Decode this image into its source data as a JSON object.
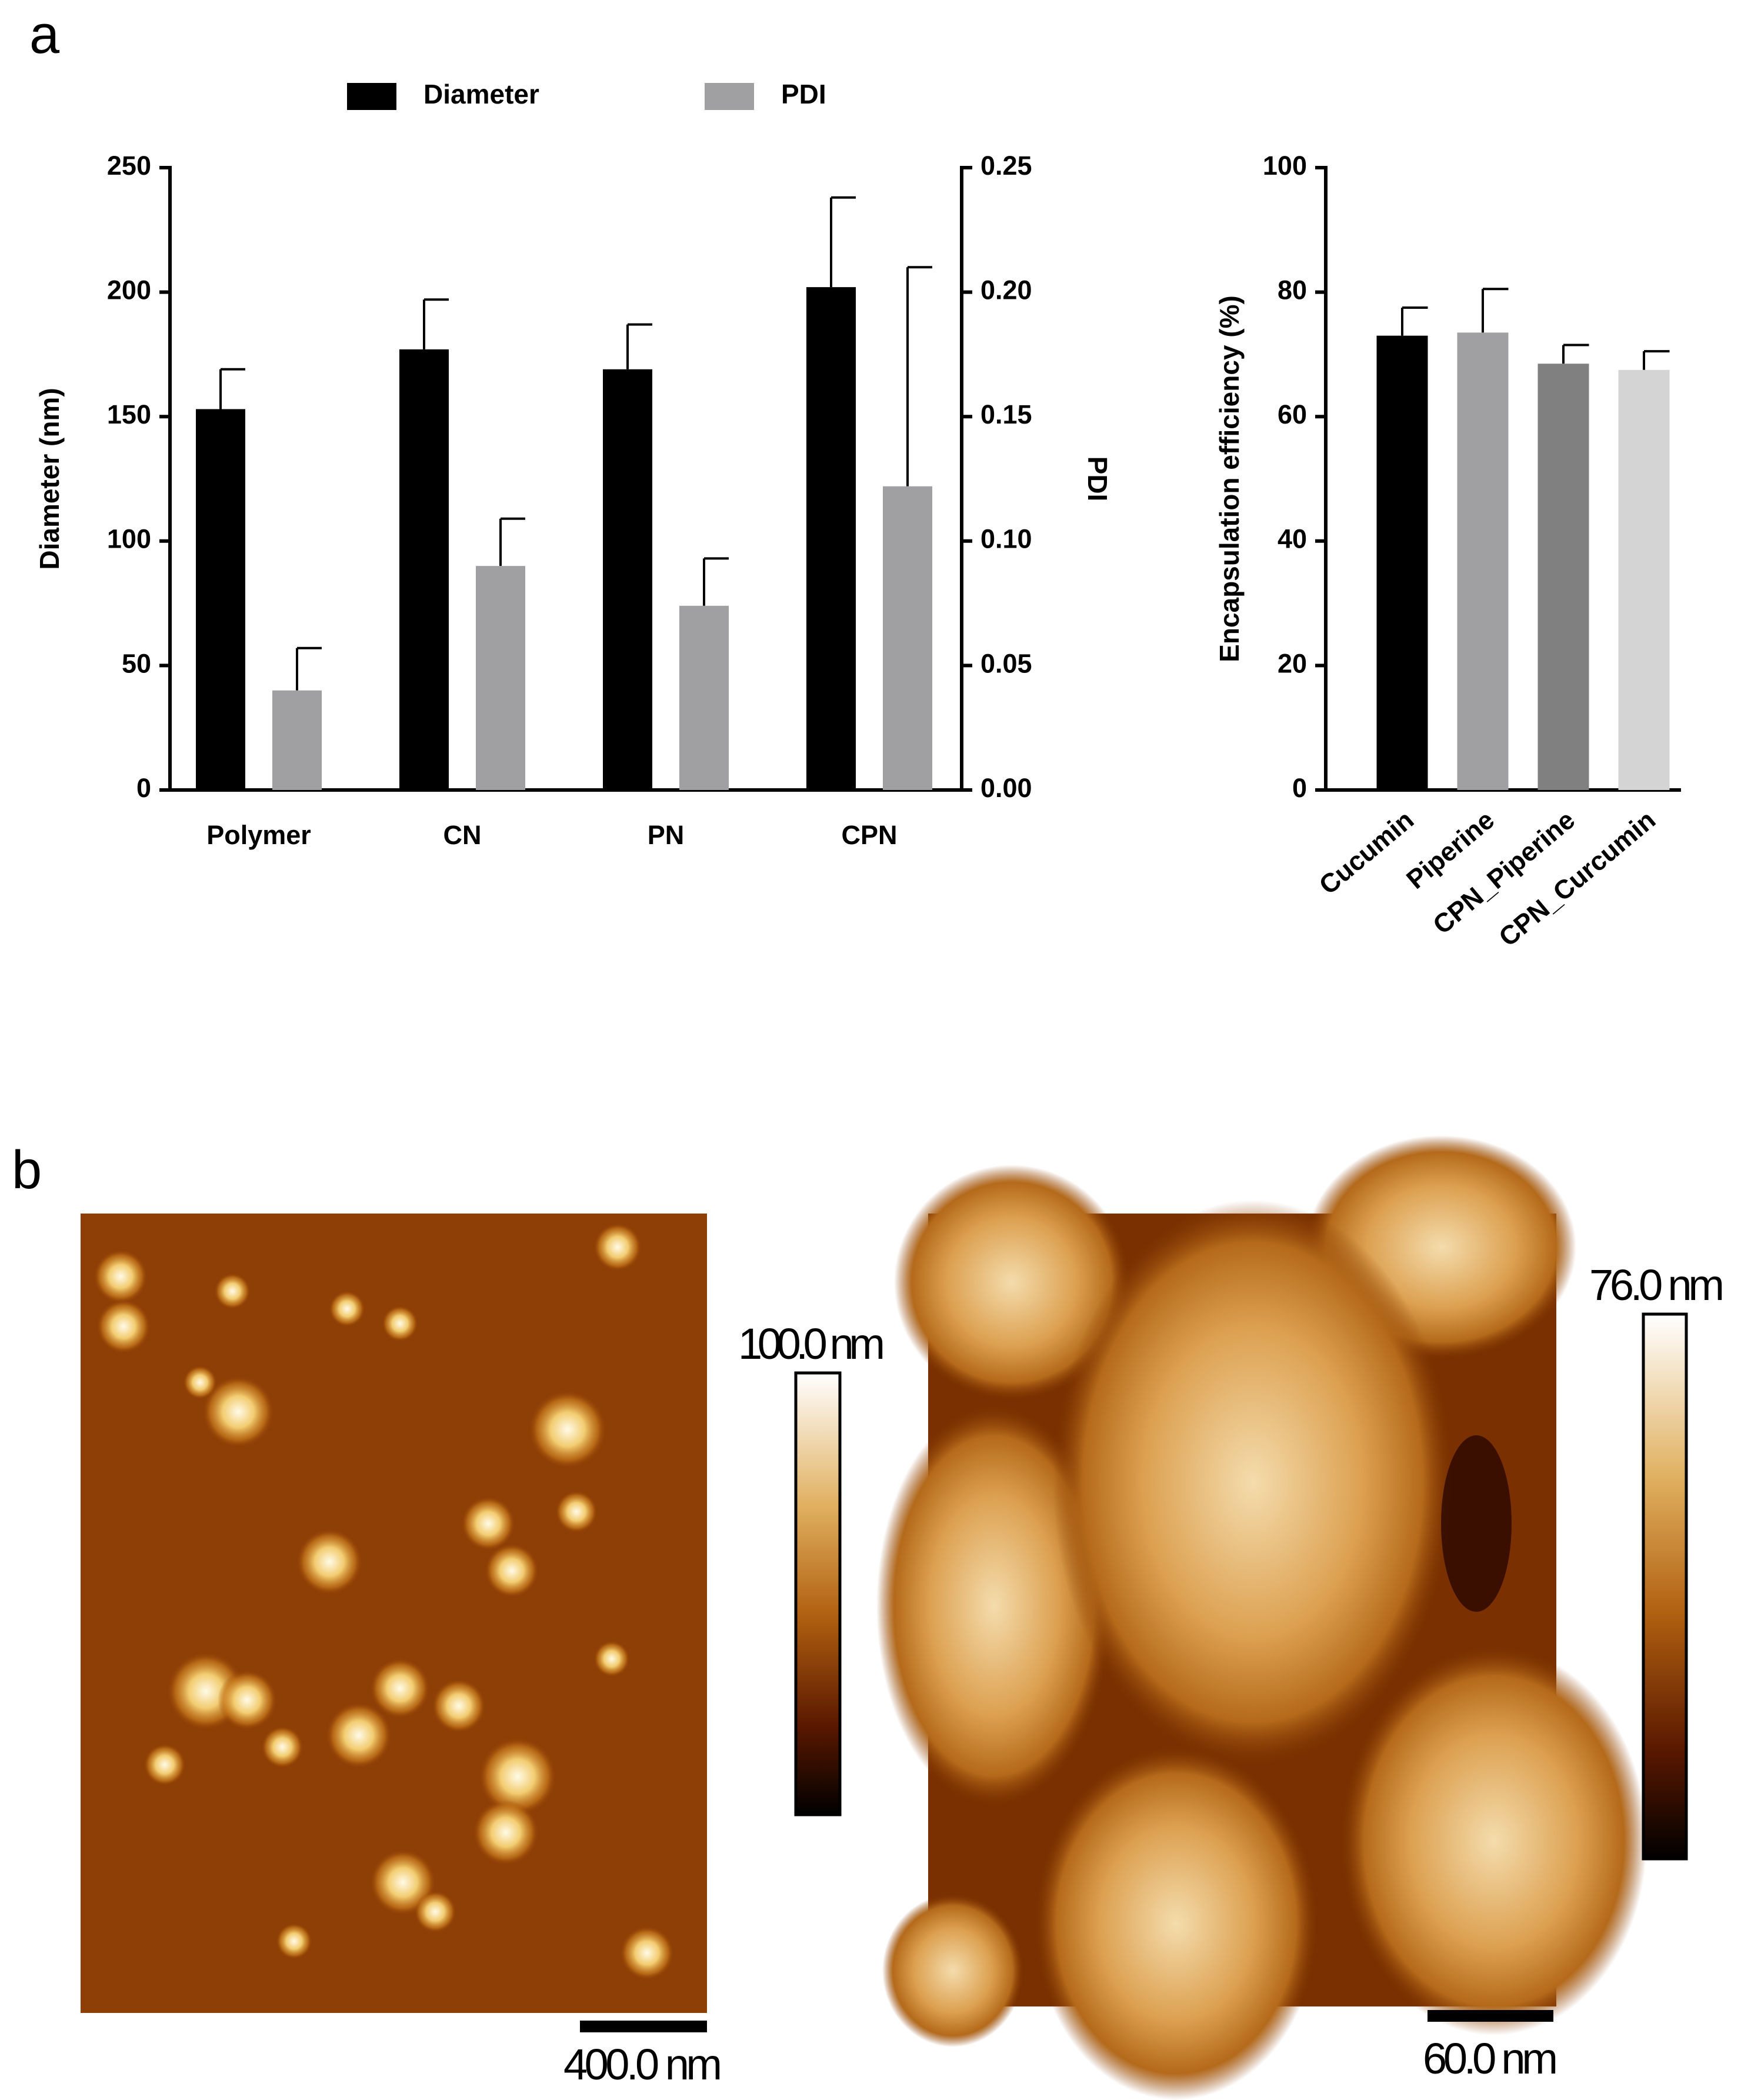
{
  "panel_labels": [
    "a",
    "b"
  ],
  "chart_data": [
    {
      "type": "bar",
      "categories": [
        "Polymer",
        "CN",
        "PN",
        "CPN"
      ],
      "series": [
        {
          "name": "Diameter",
          "color": "#000000",
          "values": [
            153,
            177,
            169,
            202
          ],
          "errors": [
            16,
            20,
            18,
            36
          ]
        },
        {
          "name": "PDI",
          "color": "#a0a0a2",
          "axis": "y2",
          "values": [
            0.04,
            0.09,
            0.074,
            0.122
          ],
          "errors": [
            0.017,
            0.019,
            0.019,
            0.088
          ]
        }
      ],
      "y_label": "Diameter (nm)",
      "y2_label": "PDI",
      "ylim": [
        0,
        250
      ],
      "yticks": [
        0,
        50,
        100,
        150,
        200,
        250
      ],
      "y2lim": [
        0,
        0.25
      ],
      "y2ticks": [
        {
          "value": 0,
          "label": "0.00"
        },
        0.05,
        {
          "value": 0.1,
          "label": "0.10"
        },
        0.15,
        {
          "value": 0.2,
          "label": "0.20"
        },
        0.25
      ],
      "legend": "top",
      "grid": false
    },
    {
      "type": "bar",
      "categories": [
        "Cucumin",
        "Piperine",
        "CPN_Piperine",
        "CPN_Curcumin"
      ],
      "values": [
        73,
        73.5,
        68.5,
        67.5
      ],
      "errors": [
        4.5,
        7,
        3,
        3
      ],
      "colors": [
        "#000000",
        "#a0a0a2",
        "#808080",
        "#d4d4d4"
      ],
      "y_label": "Encapsulation efficiency (%)",
      "ylim": [
        0,
        100
      ],
      "yticks": [
        0,
        20,
        40,
        60,
        80,
        100
      ],
      "grid": false
    }
  ],
  "images": [
    {
      "color_scale_label": "100.0 nm",
      "scale_bar_label": "400.0 nm"
    },
    {
      "color_scale_label": "76.0 nm",
      "scale_bar_label": "60.0 nm"
    }
  ]
}
